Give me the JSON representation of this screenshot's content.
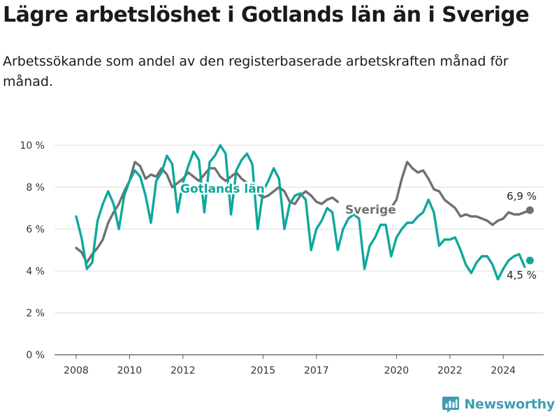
{
  "title": "Lägre arbetslöshet i Gotlands län än i Sverige",
  "subtitle": "Arbetssökande som andel av den registerbaserade arbetskraften månad för månad.",
  "brand": {
    "name": "Newsworthy",
    "icon": "newsworthy-logo-icon",
    "color": "#3f9db1"
  },
  "chart_data": {
    "type": "line",
    "title": "",
    "xlabel": "",
    "ylabel": "",
    "xlim": [
      2007.6,
      2025.8
    ],
    "ylim": [
      0,
      10
    ],
    "grid": true,
    "y_ticks": [
      {
        "value": 0,
        "label": "0 %"
      },
      {
        "value": 2,
        "label": "2 %"
      },
      {
        "value": 4,
        "label": "4 %"
      },
      {
        "value": 6,
        "label": "6 %"
      },
      {
        "value": 8,
        "label": "8 %"
      },
      {
        "value": 10,
        "label": "10 %"
      }
    ],
    "x_ticks": [
      {
        "value": 2008,
        "label": "2008"
      },
      {
        "value": 2010,
        "label": "2010"
      },
      {
        "value": 2012,
        "label": "2012"
      },
      {
        "value": 2015,
        "label": "2015"
      },
      {
        "value": 2017,
        "label": "2017"
      },
      {
        "value": 2020,
        "label": "2020"
      },
      {
        "value": 2022,
        "label": "2022"
      },
      {
        "value": 2024,
        "label": "2024"
      }
    ],
    "series": [
      {
        "name": "Sverige",
        "color": "#707070",
        "end_label": "6,9 %",
        "points": [
          [
            2008.0,
            5.1
          ],
          [
            2008.2,
            4.9
          ],
          [
            2008.4,
            4.4
          ],
          [
            2008.6,
            4.8
          ],
          [
            2008.8,
            5.1
          ],
          [
            2009.0,
            5.5
          ],
          [
            2009.2,
            6.3
          ],
          [
            2009.4,
            6.8
          ],
          [
            2009.6,
            7.2
          ],
          [
            2009.8,
            7.8
          ],
          [
            2010.0,
            8.3
          ],
          [
            2010.2,
            9.2
          ],
          [
            2010.4,
            9.0
          ],
          [
            2010.6,
            8.4
          ],
          [
            2010.8,
            8.6
          ],
          [
            2011.0,
            8.5
          ],
          [
            2011.2,
            8.9
          ],
          [
            2011.4,
            8.6
          ],
          [
            2011.6,
            8.0
          ],
          [
            2011.8,
            8.2
          ],
          [
            2012.0,
            8.4
          ],
          [
            2012.2,
            8.7
          ],
          [
            2012.4,
            8.5
          ],
          [
            2012.6,
            8.3
          ],
          [
            2012.8,
            8.6
          ],
          [
            2013.0,
            8.9
          ],
          [
            2013.2,
            8.9
          ],
          [
            2013.4,
            8.5
          ],
          [
            2013.6,
            8.3
          ],
          [
            2013.8,
            8.5
          ],
          [
            2014.0,
            8.7
          ],
          [
            2014.2,
            8.4
          ],
          [
            2014.4,
            8.2
          ],
          [
            2014.6,
            7.8
          ],
          [
            2014.8,
            7.7
          ],
          [
            2015.0,
            7.5
          ],
          [
            2015.2,
            7.6
          ],
          [
            2015.4,
            7.8
          ],
          [
            2015.6,
            8.0
          ],
          [
            2015.8,
            7.8
          ],
          [
            2016.0,
            7.3
          ],
          [
            2016.2,
            7.2
          ],
          [
            2016.4,
            7.6
          ],
          [
            2016.6,
            7.8
          ],
          [
            2016.8,
            7.6
          ],
          [
            2017.0,
            7.3
          ],
          [
            2017.2,
            7.2
          ],
          [
            2017.4,
            7.4
          ],
          [
            2017.6,
            7.5
          ],
          [
            2017.8,
            7.3
          ]
        ],
        "points_2": [
          [
            2019.6,
            6.8
          ],
          [
            2019.8,
            7.0
          ],
          [
            2020.0,
            7.4
          ],
          [
            2020.2,
            8.4
          ],
          [
            2020.4,
            9.2
          ],
          [
            2020.6,
            8.9
          ],
          [
            2020.8,
            8.7
          ],
          [
            2021.0,
            8.8
          ],
          [
            2021.2,
            8.4
          ],
          [
            2021.4,
            7.9
          ],
          [
            2021.6,
            7.8
          ],
          [
            2021.8,
            7.4
          ],
          [
            2022.0,
            7.2
          ],
          [
            2022.2,
            7.0
          ],
          [
            2022.4,
            6.6
          ],
          [
            2022.6,
            6.7
          ],
          [
            2022.8,
            6.6
          ],
          [
            2023.0,
            6.6
          ],
          [
            2023.2,
            6.5
          ],
          [
            2023.4,
            6.4
          ],
          [
            2023.6,
            6.2
          ],
          [
            2023.8,
            6.4
          ],
          [
            2024.0,
            6.5
          ],
          [
            2024.2,
            6.8
          ],
          [
            2024.4,
            6.7
          ],
          [
            2024.6,
            6.7
          ],
          [
            2024.8,
            6.8
          ],
          [
            2025.0,
            6.9
          ]
        ]
      },
      {
        "name": "Gotlands län",
        "color": "#0ea89b",
        "end_label": "4,5 %",
        "points": [
          [
            2008.0,
            6.6
          ],
          [
            2008.2,
            5.6
          ],
          [
            2008.4,
            4.1
          ],
          [
            2008.6,
            4.4
          ],
          [
            2008.8,
            6.4
          ],
          [
            2009.0,
            7.2
          ],
          [
            2009.2,
            7.8
          ],
          [
            2009.4,
            7.2
          ],
          [
            2009.6,
            6.0
          ],
          [
            2009.8,
            7.6
          ],
          [
            2010.0,
            8.3
          ],
          [
            2010.2,
            8.8
          ],
          [
            2010.4,
            8.5
          ],
          [
            2010.6,
            7.6
          ],
          [
            2010.8,
            6.3
          ],
          [
            2011.0,
            8.3
          ],
          [
            2011.2,
            8.7
          ],
          [
            2011.4,
            9.5
          ],
          [
            2011.6,
            9.1
          ],
          [
            2011.8,
            6.8
          ],
          [
            2012.0,
            8.2
          ],
          [
            2012.2,
            9.0
          ],
          [
            2012.4,
            9.7
          ],
          [
            2012.6,
            9.3
          ],
          [
            2012.8,
            6.8
          ],
          [
            2013.0,
            9.2
          ],
          [
            2013.2,
            9.5
          ],
          [
            2013.4,
            10.0
          ],
          [
            2013.6,
            9.6
          ],
          [
            2013.8,
            6.7
          ],
          [
            2014.0,
            8.8
          ],
          [
            2014.2,
            9.3
          ],
          [
            2014.4,
            9.6
          ],
          [
            2014.6,
            9.1
          ],
          [
            2014.8,
            6.0
          ],
          [
            2015.0,
            7.8
          ],
          [
            2015.2,
            8.3
          ],
          [
            2015.4,
            8.9
          ],
          [
            2015.6,
            8.4
          ],
          [
            2015.8,
            6.0
          ],
          [
            2016.0,
            7.2
          ],
          [
            2016.2,
            7.6
          ],
          [
            2016.4,
            7.7
          ],
          [
            2016.6,
            7.4
          ],
          [
            2016.8,
            5.0
          ],
          [
            2017.0,
            6.0
          ],
          [
            2017.2,
            6.4
          ],
          [
            2017.4,
            7.0
          ],
          [
            2017.6,
            6.8
          ],
          [
            2017.8,
            5.0
          ],
          [
            2018.0,
            6.0
          ],
          [
            2018.2,
            6.5
          ],
          [
            2018.4,
            6.7
          ],
          [
            2018.6,
            6.5
          ],
          [
            2018.8,
            4.1
          ],
          [
            2019.0,
            5.2
          ],
          [
            2019.2,
            5.6
          ],
          [
            2019.4,
            6.2
          ],
          [
            2019.6,
            6.2
          ],
          [
            2019.8,
            4.7
          ],
          [
            2020.0,
            5.6
          ],
          [
            2020.2,
            6.0
          ],
          [
            2020.4,
            6.3
          ],
          [
            2020.6,
            6.3
          ],
          [
            2020.8,
            6.6
          ],
          [
            2021.0,
            6.8
          ],
          [
            2021.2,
            7.4
          ],
          [
            2021.4,
            6.8
          ],
          [
            2021.6,
            5.2
          ],
          [
            2021.8,
            5.5
          ],
          [
            2022.0,
            5.5
          ],
          [
            2022.2,
            5.6
          ],
          [
            2022.4,
            5.0
          ],
          [
            2022.6,
            4.3
          ],
          [
            2022.8,
            3.9
          ],
          [
            2023.0,
            4.4
          ],
          [
            2023.2,
            4.7
          ],
          [
            2023.4,
            4.7
          ],
          [
            2023.6,
            4.3
          ],
          [
            2023.8,
            3.6
          ],
          [
            2024.0,
            4.1
          ],
          [
            2024.2,
            4.5
          ],
          [
            2024.4,
            4.7
          ],
          [
            2024.6,
            4.8
          ],
          [
            2024.8,
            4.2
          ]
        ],
        "end_point": [
          2025.0,
          4.5
        ]
      }
    ]
  }
}
